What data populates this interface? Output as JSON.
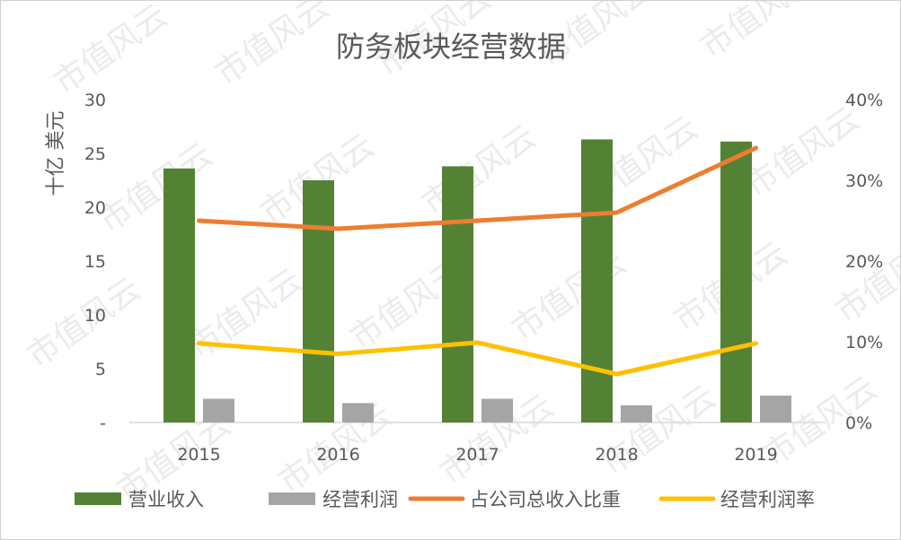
{
  "chart_data": {
    "type": "bar",
    "title": "防务板块经营数据",
    "ylabel": "十亿 美元",
    "categories": [
      "2015",
      "2016",
      "2017",
      "2018",
      "2019"
    ],
    "left_axis": {
      "ylim": [
        0,
        30
      ],
      "ticks": [
        0,
        5,
        10,
        15,
        20,
        25,
        30
      ],
      "tick_labels": [
        "-",
        "5",
        "10",
        "15",
        "20",
        "25",
        "30"
      ]
    },
    "right_axis": {
      "ylim": [
        0,
        0.4
      ],
      "ticks": [
        0,
        0.1,
        0.2,
        0.3,
        0.4
      ],
      "tick_labels": [
        "0%",
        "10%",
        "20%",
        "30%",
        "40%"
      ]
    },
    "series": [
      {
        "name": "营业收入",
        "kind": "bar",
        "axis": "left",
        "color": "#548235",
        "values": [
          23.6,
          22.5,
          23.8,
          26.3,
          26.1
        ]
      },
      {
        "name": "经营利润",
        "kind": "bar",
        "axis": "left",
        "color": "#a5a5a5",
        "values": [
          2.2,
          1.8,
          2.2,
          1.6,
          2.5
        ]
      },
      {
        "name": "占公司总收入比重",
        "kind": "line",
        "axis": "right",
        "color": "#ed7d31",
        "values": [
          0.25,
          0.24,
          0.25,
          0.26,
          0.34
        ]
      },
      {
        "name": "经营利润率",
        "kind": "line",
        "axis": "right",
        "color": "#ffc000",
        "values": [
          0.098,
          0.085,
          0.099,
          0.06,
          0.098
        ]
      }
    ],
    "grid": false,
    "legend_position": "bottom"
  },
  "watermark": "市值风云"
}
